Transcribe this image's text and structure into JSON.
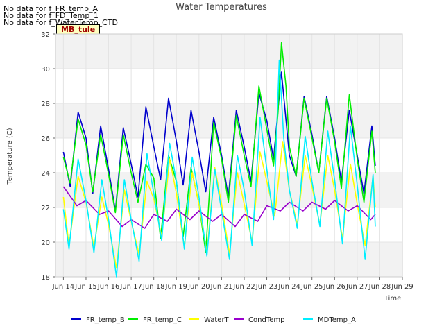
{
  "notes": [
    "No data for f_FR_temp_A",
    "No data for f_FD_Temp_1",
    "No data for f_WaterTemp_CTD"
  ],
  "site_badge": "MB_tule",
  "chart_data": {
    "type": "line",
    "title": "Water Temperatures",
    "xlabel": "Time",
    "ylabel": "Temperature (C)",
    "xlim": [
      13.65,
      29.0
    ],
    "ylim": [
      18,
      32
    ],
    "x_ticks": [
      14,
      15,
      16,
      17,
      18,
      19,
      20,
      21,
      22,
      23,
      24,
      25,
      26,
      27,
      28,
      29
    ],
    "x_tick_labels": [
      "Jun 14",
      "Jun 15",
      "Jun 16",
      "Jun 17",
      "Jun 18",
      "Jun 19",
      "Jun 20",
      "Jun 21",
      "Jun 22",
      "Jun 23",
      "Jun 24",
      "Jun 25",
      "Jun 26",
      "Jun 27",
      "Jun 28",
      "Jun 29"
    ],
    "y_ticks": [
      18,
      20,
      22,
      24,
      26,
      28,
      30,
      32
    ],
    "y_tick_labels": [
      "18",
      "20",
      "22",
      "24",
      "26",
      "28",
      "30",
      "32"
    ],
    "grid": true,
    "legend_position": "bottom",
    "series": [
      {
        "name": "FR_temp_B",
        "color": "#0000cc",
        "x": [
          14.0,
          14.3,
          14.65,
          15.0,
          15.3,
          15.65,
          16.0,
          16.3,
          16.65,
          17.0,
          17.3,
          17.65,
          18.0,
          18.3,
          18.65,
          19.0,
          19.3,
          19.65,
          20.0,
          20.3,
          20.65,
          21.0,
          21.3,
          21.65,
          22.0,
          22.3,
          22.65,
          23.0,
          23.3,
          23.65,
          24.0,
          24.3,
          24.65,
          25.0,
          25.3,
          25.65,
          26.0,
          26.3,
          26.65,
          27.0,
          27.3,
          27.65,
          27.8
        ],
        "y": [
          25.2,
          23.2,
          27.5,
          26.0,
          22.8,
          26.7,
          24.2,
          21.8,
          26.6,
          24.5,
          22.6,
          27.8,
          25.5,
          23.6,
          28.3,
          25.8,
          23.3,
          27.6,
          25.2,
          22.9,
          27.2,
          25.0,
          22.6,
          27.6,
          25.5,
          23.5,
          28.6,
          27.0,
          24.8,
          29.8,
          25.0,
          23.8,
          28.4,
          26.2,
          24.0,
          28.4,
          26.0,
          23.5,
          27.6,
          25.0,
          22.8,
          26.7,
          24.4
        ]
      },
      {
        "name": "FR_temp_C",
        "color": "#00ee00",
        "x": [
          14.0,
          14.3,
          14.65,
          15.0,
          15.3,
          15.65,
          16.0,
          16.3,
          16.65,
          17.0,
          17.3,
          17.65,
          18.0,
          18.3,
          18.65,
          19.0,
          19.3,
          19.65,
          20.0,
          20.3,
          20.65,
          21.0,
          21.3,
          21.65,
          22.0,
          22.3,
          22.65,
          23.0,
          23.3,
          23.5,
          23.65,
          23.85,
          24.0,
          24.3,
          24.65,
          25.0,
          25.3,
          25.65,
          26.0,
          26.3,
          26.65,
          27.0,
          27.3,
          27.65,
          27.8
        ],
        "y": [
          24.9,
          23.4,
          27.1,
          25.6,
          22.9,
          26.2,
          23.9,
          21.7,
          26.2,
          24.0,
          22.3,
          24.5,
          23.7,
          20.2,
          25.0,
          23.5,
          20.3,
          24.3,
          22.2,
          19.4,
          26.9,
          24.8,
          22.3,
          27.3,
          25.0,
          23.2,
          29.0,
          26.5,
          24.4,
          27.5,
          31.5,
          29.0,
          25.5,
          23.8,
          28.3,
          26.0,
          24.0,
          28.3,
          25.8,
          23.1,
          28.5,
          24.8,
          22.3,
          26.4,
          24.0
        ]
      },
      {
        "name": "WaterT",
        "color": "#ffff00",
        "x": [
          14.0,
          14.25,
          14.65,
          15.0,
          15.35,
          15.7,
          16.0,
          16.35,
          16.7,
          17.0,
          17.35,
          17.7,
          18.0,
          18.35,
          18.7,
          19.0,
          19.35,
          19.7,
          20.0,
          20.35,
          20.7,
          21.0,
          21.35,
          21.7,
          22.0,
          22.35,
          22.7,
          23.0,
          23.35,
          23.7,
          24.0,
          24.35,
          24.7,
          25.0,
          25.35,
          25.7,
          26.0,
          26.35,
          26.7,
          27.0,
          27.35,
          27.7,
          27.8
        ],
        "y": [
          22.6,
          19.8,
          23.8,
          22.3,
          19.7,
          22.6,
          21.0,
          18.5,
          23.0,
          21.2,
          19.3,
          23.5,
          22.5,
          20.3,
          24.8,
          22.8,
          19.7,
          24.0,
          22.2,
          19.4,
          24.3,
          22.2,
          19.3,
          24.0,
          22.2,
          20.0,
          25.2,
          23.5,
          21.5,
          25.8,
          23.0,
          21.0,
          25.0,
          23.2,
          21.0,
          25.0,
          23.0,
          20.2,
          24.5,
          22.2,
          19.8,
          23.8,
          22.0
        ]
      },
      {
        "name": "CondTemp",
        "color": "#9900cc",
        "x": [
          14.0,
          14.6,
          15.0,
          15.6,
          16.0,
          16.6,
          17.0,
          17.6,
          18.0,
          18.6,
          19.0,
          19.6,
          20.0,
          20.6,
          21.0,
          21.6,
          22.0,
          22.6,
          23.0,
          23.6,
          24.0,
          24.6,
          25.0,
          25.6,
          26.0,
          26.6,
          27.0,
          27.6,
          27.8
        ],
        "y": [
          23.2,
          22.1,
          22.4,
          21.6,
          21.8,
          20.9,
          21.3,
          20.8,
          21.6,
          21.2,
          21.9,
          21.3,
          21.8,
          21.2,
          21.6,
          20.9,
          21.6,
          21.2,
          22.1,
          21.8,
          22.3,
          21.8,
          22.3,
          21.9,
          22.4,
          21.8,
          22.1,
          21.3,
          21.6
        ]
      },
      {
        "name": "MDTemp_A",
        "color": "#00eeff",
        "x": [
          14.0,
          14.25,
          14.65,
          15.0,
          15.35,
          15.7,
          16.0,
          16.35,
          16.7,
          17.0,
          17.35,
          17.7,
          18.0,
          18.35,
          18.7,
          19.0,
          19.35,
          19.7,
          20.0,
          20.35,
          20.7,
          21.0,
          21.35,
          21.7,
          22.0,
          22.35,
          22.7,
          23.0,
          23.3,
          23.55,
          23.75,
          24.0,
          24.35,
          24.7,
          25.0,
          25.35,
          25.7,
          26.0,
          26.35,
          26.7,
          27.0,
          27.35,
          27.7,
          27.8
        ],
        "y": [
          21.9,
          19.6,
          24.8,
          22.4,
          19.4,
          23.6,
          21.3,
          18.0,
          23.6,
          21.3,
          18.9,
          25.1,
          22.8,
          20.1,
          25.7,
          23.5,
          19.6,
          24.9,
          22.6,
          19.2,
          24.2,
          21.8,
          19.0,
          25.0,
          23.0,
          19.8,
          27.2,
          24.2,
          21.3,
          30.5,
          26.0,
          23.0,
          20.8,
          26.1,
          23.5,
          20.9,
          26.4,
          23.6,
          19.9,
          26.7,
          23.3,
          19.0,
          23.9,
          20.9
        ]
      }
    ]
  }
}
